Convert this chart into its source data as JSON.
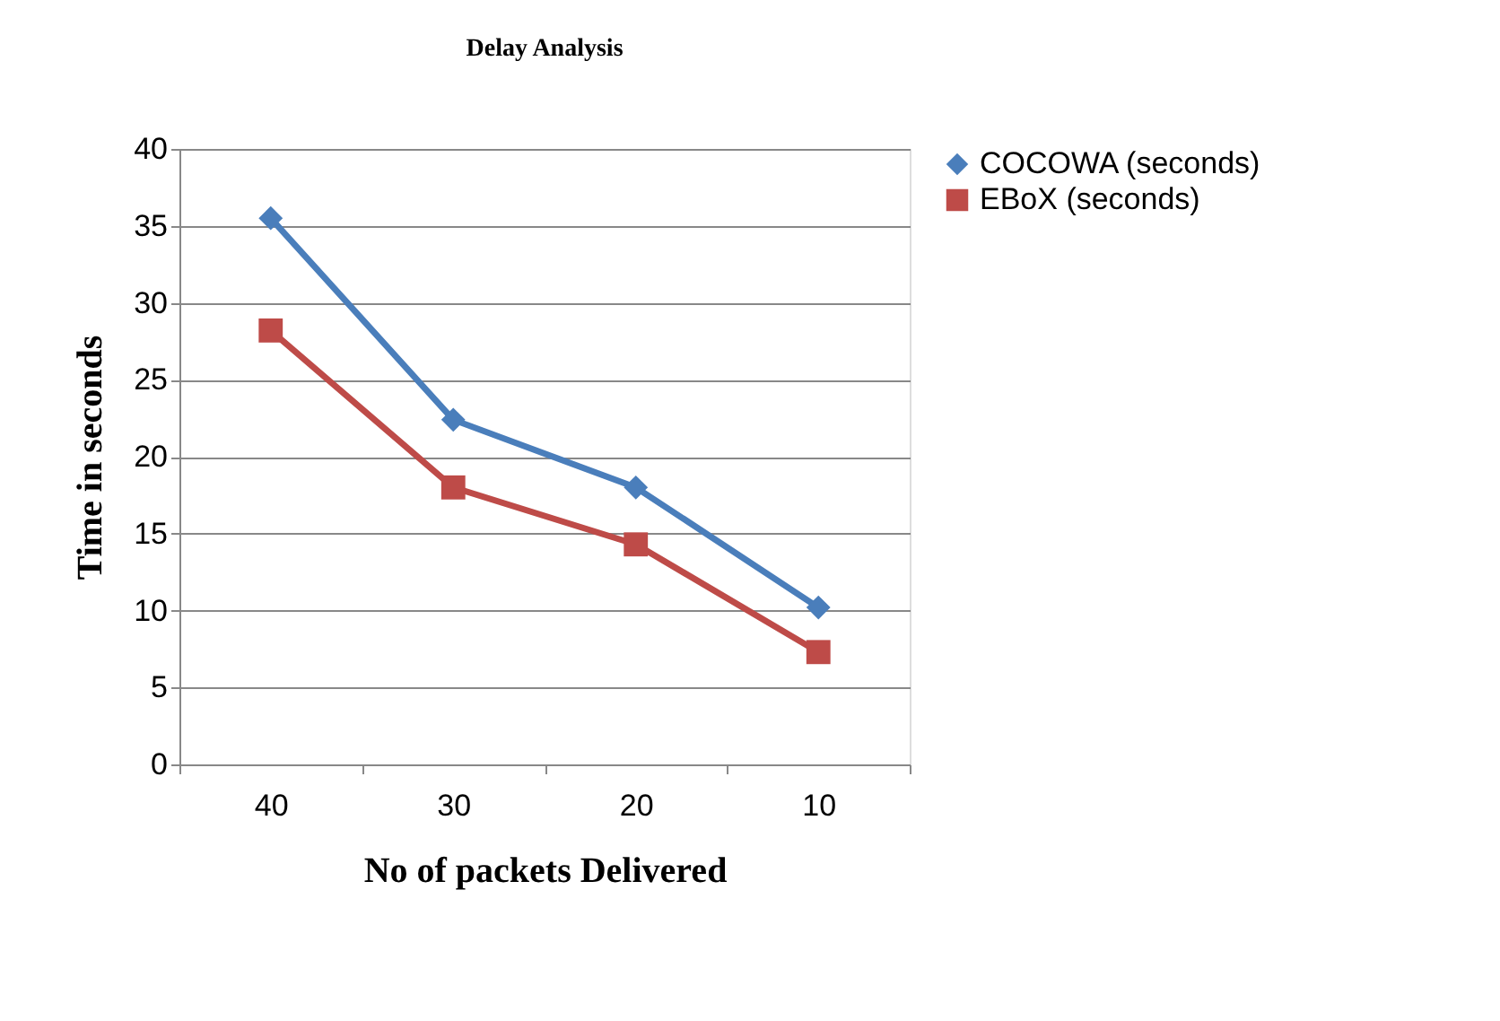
{
  "chart_data": {
    "type": "line",
    "title": "Delay Analysis",
    "xlabel": "No of packets Delivered",
    "ylabel": "Time in seconds",
    "categories": [
      "40",
      "30",
      "20",
      "10"
    ],
    "series": [
      {
        "name": "COCOWA (seconds)",
        "color": "#4a7ebb",
        "marker": "diamond",
        "values": [
          35.5,
          22.4,
          18.0,
          10.2
        ]
      },
      {
        "name": "EBoX (seconds)",
        "color": "#be4b48",
        "marker": "square",
        "values": [
          28.2,
          18.0,
          14.3,
          7.3
        ]
      }
    ],
    "ylim": [
      0,
      40
    ],
    "yticks": [
      0,
      5,
      10,
      15,
      20,
      25,
      30,
      35,
      40
    ],
    "grid": "y",
    "legend": "right"
  }
}
